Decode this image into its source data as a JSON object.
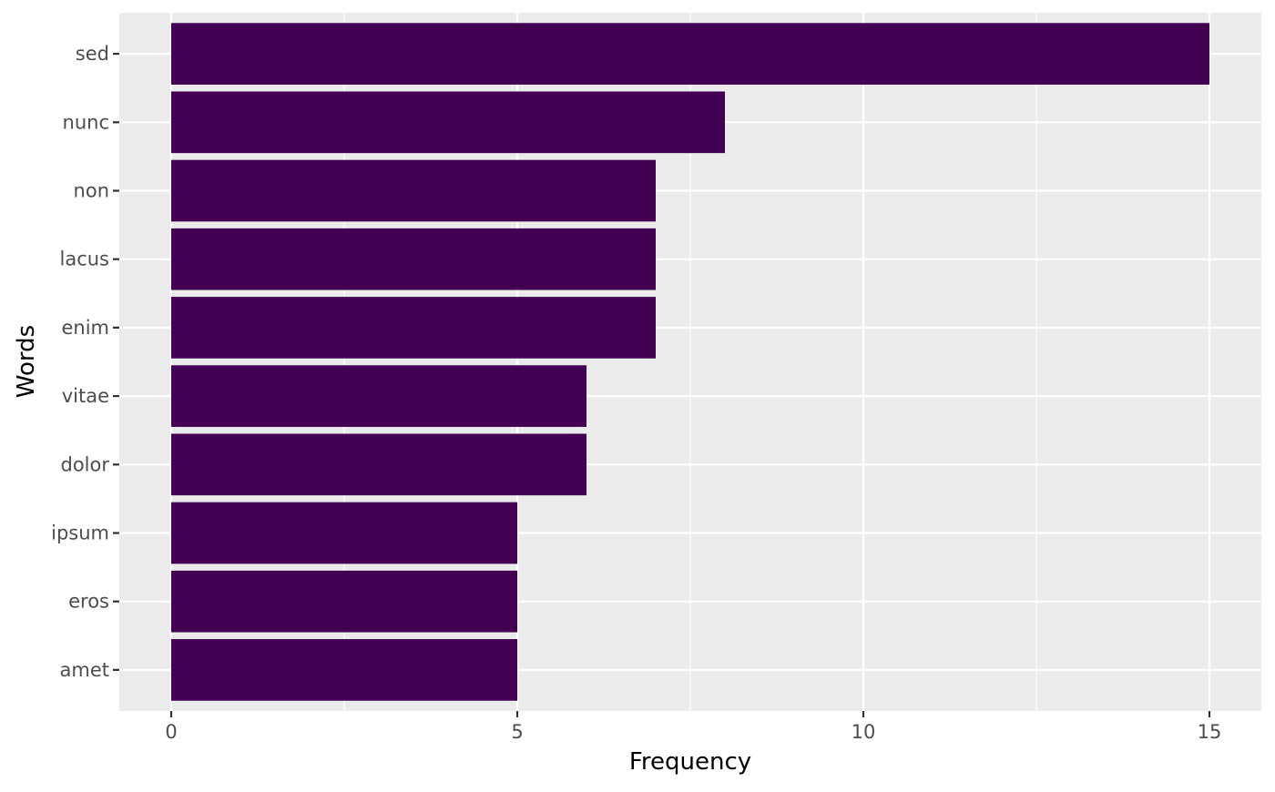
{
  "chart_data": {
    "type": "bar",
    "orientation": "horizontal",
    "categories": [
      "sed",
      "nunc",
      "non",
      "lacus",
      "enim",
      "vitae",
      "dolor",
      "ipsum",
      "eros",
      "amet"
    ],
    "values": [
      15,
      8,
      7,
      7,
      7,
      6,
      6,
      5,
      5,
      5
    ],
    "xlabel": "Frequency",
    "ylabel": "Words",
    "xlim": [
      -0.75,
      15.75
    ],
    "x_ticks": [
      0,
      5,
      10,
      15
    ],
    "x_minor_ticks": [
      2.5,
      7.5,
      12.5
    ],
    "grid": true,
    "legend": "none",
    "colors": {
      "bar": "#440154",
      "panel_background": "#EBEBEB",
      "grid": "#FFFFFF",
      "tick_label": "#4D4D4D",
      "axis_title": "#000000",
      "tick": "#333333"
    }
  }
}
